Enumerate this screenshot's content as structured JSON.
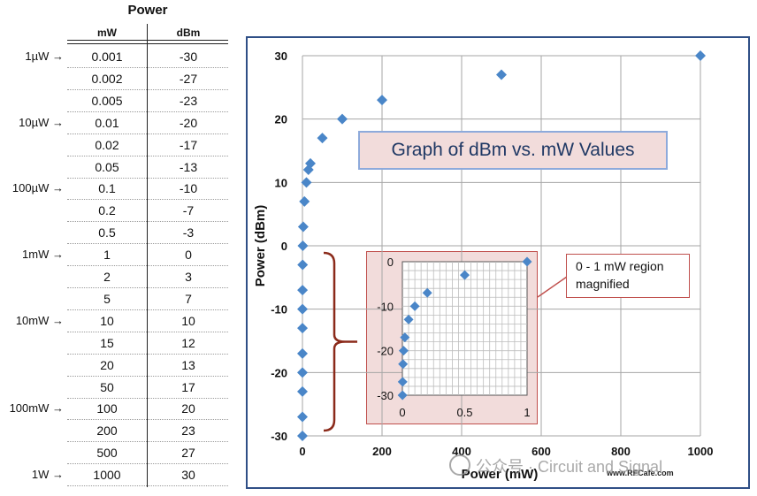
{
  "table": {
    "title": "Power",
    "col_mw": "mW",
    "col_dbm": "dBm",
    "rows": [
      {
        "marker": "1µW",
        "mw": "0.001",
        "dbm": "-30"
      },
      {
        "marker": "",
        "mw": "0.002",
        "dbm": "-27"
      },
      {
        "marker": "",
        "mw": "0.005",
        "dbm": "-23"
      },
      {
        "marker": "10µW",
        "mw": "0.01",
        "dbm": "-20"
      },
      {
        "marker": "",
        "mw": "0.02",
        "dbm": "-17"
      },
      {
        "marker": "",
        "mw": "0.05",
        "dbm": "-13"
      },
      {
        "marker": "100µW",
        "mw": "0.1",
        "dbm": "-10"
      },
      {
        "marker": "",
        "mw": "0.2",
        "dbm": "-7"
      },
      {
        "marker": "",
        "mw": "0.5",
        "dbm": "-3"
      },
      {
        "marker": "1mW",
        "mw": "1",
        "dbm": "0"
      },
      {
        "marker": "",
        "mw": "2",
        "dbm": "3"
      },
      {
        "marker": "",
        "mw": "5",
        "dbm": "7"
      },
      {
        "marker": "10mW",
        "mw": "10",
        "dbm": "10"
      },
      {
        "marker": "",
        "mw": "15",
        "dbm": "12"
      },
      {
        "marker": "",
        "mw": "20",
        "dbm": "13"
      },
      {
        "marker": "",
        "mw": "50",
        "dbm": "17"
      },
      {
        "marker": "100mW",
        "mw": "100",
        "dbm": "20"
      },
      {
        "marker": "",
        "mw": "200",
        "dbm": "23"
      },
      {
        "marker": "",
        "mw": "500",
        "dbm": "27"
      },
      {
        "marker": "1W",
        "mw": "1000",
        "dbm": "30"
      }
    ]
  },
  "chart_data": {
    "type": "scatter",
    "title": "Graph of dBm vs. mW Values",
    "xlabel": "Power (mW)",
    "ylabel": "Power (dBm)",
    "xlim": [
      0,
      1000
    ],
    "ylim": [
      -30,
      30
    ],
    "xticks": [
      "0",
      "200",
      "400",
      "600",
      "800",
      "1000"
    ],
    "yticks": [
      "-30",
      "-20",
      "-10",
      "0",
      "10",
      "20",
      "30"
    ],
    "grid": true,
    "marker_color": "#4a86c8",
    "x": [
      0.001,
      0.002,
      0.005,
      0.01,
      0.02,
      0.05,
      0.1,
      0.2,
      0.5,
      1,
      2,
      5,
      10,
      15,
      20,
      50,
      100,
      200,
      500,
      1000
    ],
    "y": [
      -30,
      -27,
      -23,
      -20,
      -17,
      -13,
      -10,
      -7,
      -3,
      0,
      3,
      7,
      10,
      12,
      13,
      17,
      20,
      23,
      27,
      30
    ],
    "inset": {
      "xlim": [
        0,
        1
      ],
      "ylim": [
        -30,
        0
      ],
      "xticks": [
        "0",
        "0.5",
        "1"
      ],
      "yticks": [
        "-30",
        "-20",
        "-10",
        "0"
      ],
      "callout": "0 - 1 mW region magnified"
    },
    "credit": "www.RFCafe.com"
  },
  "watermark": "公众号 · Circuit and Signal",
  "colors": {
    "frame": "#2f4f86",
    "bracket": "#8b2a1a",
    "inset_fill": "#f2dcdb",
    "inset_border": "#c0504d",
    "title_text": "#1f3864"
  }
}
